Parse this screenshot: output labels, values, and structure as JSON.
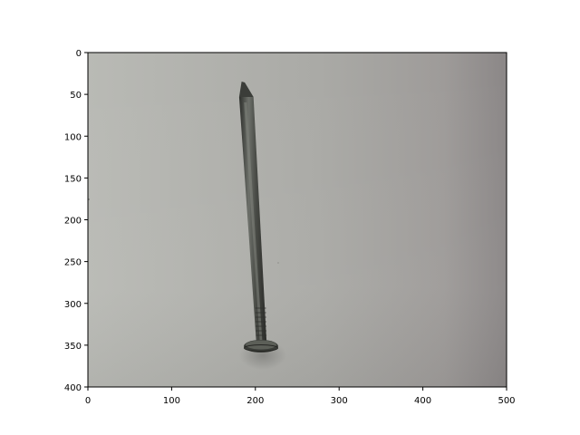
{
  "figure": {
    "type": "image-plot",
    "subject": "nail-on-gray-paper",
    "background_color": "#ffffff",
    "axis_color": "#000000"
  },
  "image": {
    "description_icon": "nail-photo",
    "paper_color_light": "#b6b7b2",
    "paper_color_dark": "#8f8b8a",
    "nail_color": "#4a4c47",
    "nail_highlight": "#7b7d77",
    "nail_shadow": "#2d2f2b"
  },
  "axes": {
    "xlim": [
      0,
      500
    ],
    "ylim": [
      400,
      0
    ],
    "xticks": [
      0,
      100,
      200,
      300,
      400,
      500
    ],
    "yticks": [
      0,
      50,
      100,
      150,
      200,
      250,
      300,
      350,
      400
    ],
    "xtick_labels": [
      "0",
      "100",
      "200",
      "300",
      "400",
      "500"
    ],
    "ytick_labels": [
      "0",
      "50",
      "100",
      "150",
      "200",
      "250",
      "300",
      "350",
      "400"
    ]
  }
}
